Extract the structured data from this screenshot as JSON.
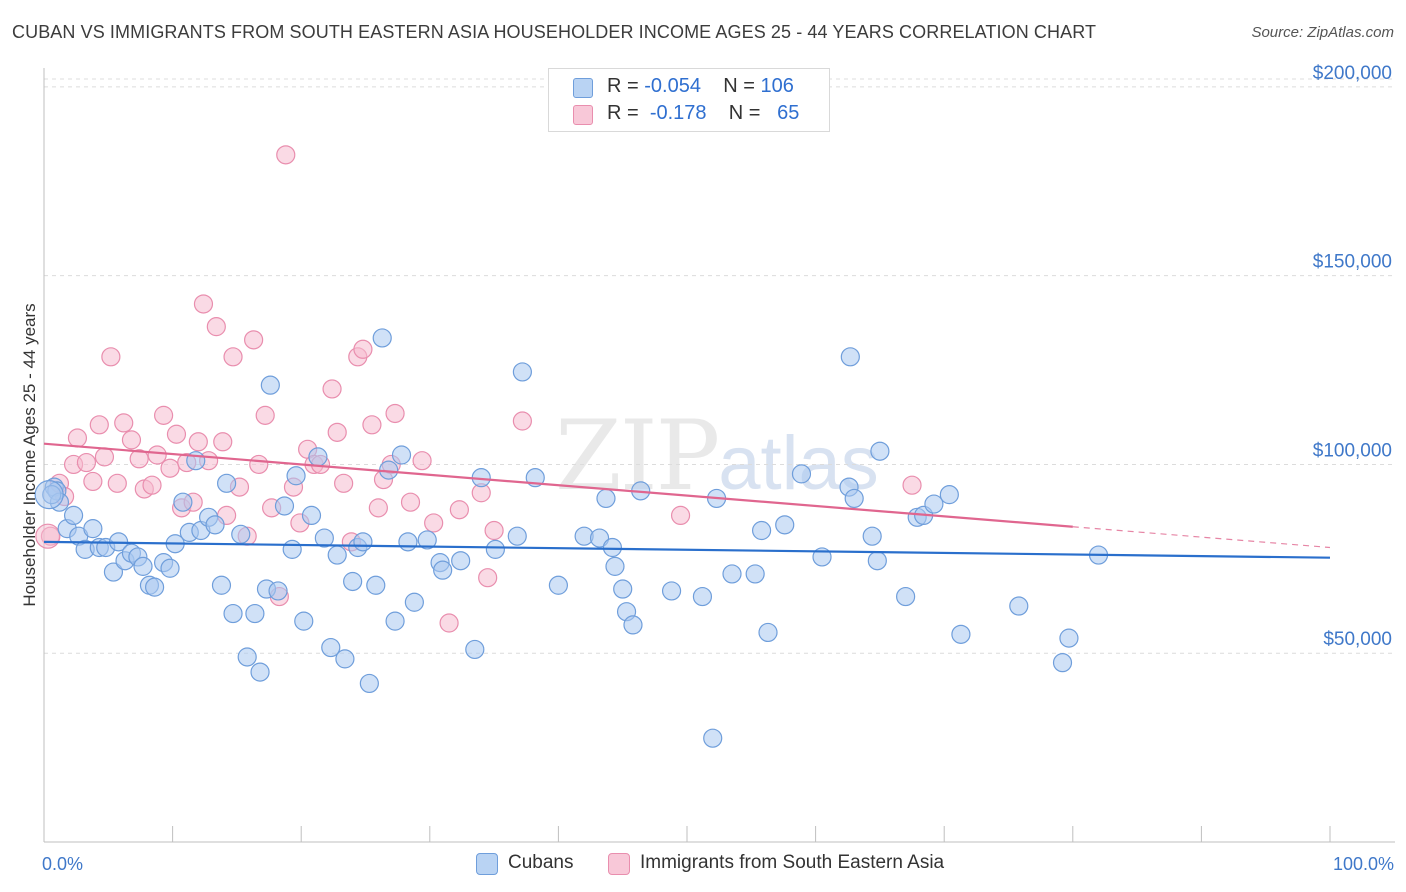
{
  "title": "CUBAN VS IMMIGRANTS FROM SOUTH EASTERN ASIA HOUSEHOLDER INCOME AGES 25 - 44 YEARS CORRELATION CHART",
  "source": "Source: ZipAtlas.com",
  "watermark": {
    "zip": "ZIP",
    "atlas": "atlas"
  },
  "colors": {
    "blue_fill": "#aac8f0",
    "blue_stroke": "#6f9edb",
    "blue_line": "#2a6fcc",
    "pink_fill": "#f5bcd0",
    "pink_stroke": "#e98eae",
    "pink_line": "#e0668f",
    "axis_text": "#3f78c9",
    "grid": "#dcdcdc"
  },
  "legend": {
    "rows": [
      {
        "r_label": "R =",
        "r_value": "-0.054",
        "n_label": "N =",
        "n_value": "106"
      },
      {
        "r_label": "R =",
        "r_value": "-0.178",
        "n_label": "N =",
        "n_value": "65"
      }
    ]
  },
  "bottom_legend": {
    "cubans": "Cubans",
    "immigrants": "Immigrants from South Eastern Asia"
  },
  "chart_data": {
    "type": "scatter",
    "title": "CUBAN VS IMMIGRANTS FROM SOUTH EASTERN ASIA HOUSEHOLDER INCOME AGES 25 - 44 YEARS CORRELATION CHART",
    "xlabel": "",
    "ylabel": "Householder Income Ages 25 - 44 years",
    "xlim": [
      0,
      100
    ],
    "ylim": [
      0,
      205000
    ],
    "x_tick_labels": [
      "0.0%",
      "100.0%"
    ],
    "y_ticks": [
      50000,
      100000,
      150000,
      200000
    ],
    "y_tick_labels": [
      "$50,000",
      "$100,000",
      "$150,000",
      "$200,000"
    ],
    "grid": true,
    "legend_position": "top-center",
    "series": [
      {
        "name": "Cubans",
        "r": -0.054,
        "n": 106,
        "trend": {
          "x": [
            0,
            100
          ],
          "y": [
            79500,
            75300
          ]
        },
        "points": [
          [
            0.8,
            94000
          ],
          [
            1.0,
            93000
          ],
          [
            1.2,
            90000
          ],
          [
            1.8,
            83000
          ],
          [
            2.3,
            86500
          ],
          [
            2.7,
            81000
          ],
          [
            3.2,
            77500
          ],
          [
            3.8,
            83000
          ],
          [
            4.3,
            78000
          ],
          [
            4.8,
            78000
          ],
          [
            5.4,
            71500
          ],
          [
            5.8,
            79500
          ],
          [
            6.3,
            74500
          ],
          [
            6.8,
            76500
          ],
          [
            7.3,
            75500
          ],
          [
            7.7,
            73000
          ],
          [
            8.2,
            68000
          ],
          [
            8.6,
            67500
          ],
          [
            9.3,
            74000
          ],
          [
            9.8,
            72500
          ],
          [
            10.2,
            79000
          ],
          [
            10.8,
            90000
          ],
          [
            11.3,
            82000
          ],
          [
            11.8,
            101000
          ],
          [
            12.2,
            82500
          ],
          [
            12.8,
            86000
          ],
          [
            13.3,
            84000
          ],
          [
            13.8,
            68000
          ],
          [
            14.2,
            95000
          ],
          [
            14.7,
            60500
          ],
          [
            15.3,
            81500
          ],
          [
            15.8,
            49000
          ],
          [
            16.4,
            60500
          ],
          [
            16.8,
            45000
          ],
          [
            17.3,
            67000
          ],
          [
            17.6,
            121000
          ],
          [
            18.2,
            66500
          ],
          [
            18.7,
            89000
          ],
          [
            19.3,
            77500
          ],
          [
            19.6,
            97000
          ],
          [
            20.2,
            58500
          ],
          [
            20.8,
            86500
          ],
          [
            21.3,
            102000
          ],
          [
            21.8,
            80500
          ],
          [
            22.3,
            51500
          ],
          [
            22.8,
            76000
          ],
          [
            23.4,
            48500
          ],
          [
            24.0,
            69000
          ],
          [
            24.4,
            78000
          ],
          [
            24.8,
            79500
          ],
          [
            25.3,
            42000
          ],
          [
            25.8,
            68000
          ],
          [
            26.3,
            133500
          ],
          [
            26.8,
            98500
          ],
          [
            27.3,
            58500
          ],
          [
            27.8,
            102500
          ],
          [
            28.3,
            79500
          ],
          [
            28.8,
            63500
          ],
          [
            29.8,
            80000
          ],
          [
            30.8,
            74000
          ],
          [
            31.0,
            72000
          ],
          [
            32.4,
            74500
          ],
          [
            33.5,
            51000
          ],
          [
            34.0,
            96500
          ],
          [
            35.1,
            77500
          ],
          [
            36.8,
            81000
          ],
          [
            37.2,
            124500
          ],
          [
            38.2,
            96500
          ],
          [
            40.0,
            68000
          ],
          [
            42.0,
            81000
          ],
          [
            43.2,
            80500
          ],
          [
            43.7,
            91000
          ],
          [
            44.2,
            78000
          ],
          [
            44.4,
            73000
          ],
          [
            45.0,
            67000
          ],
          [
            45.3,
            61000
          ],
          [
            45.8,
            57500
          ],
          [
            46.4,
            93000
          ],
          [
            48.8,
            66500
          ],
          [
            51.2,
            65000
          ],
          [
            52.0,
            27500
          ],
          [
            52.3,
            91000
          ],
          [
            53.5,
            71000
          ],
          [
            55.3,
            71000
          ],
          [
            55.8,
            82500
          ],
          [
            56.3,
            55500
          ],
          [
            57.6,
            84000
          ],
          [
            58.9,
            97500
          ],
          [
            60.5,
            75500
          ],
          [
            62.6,
            94000
          ],
          [
            62.7,
            128500
          ],
          [
            63.0,
            91000
          ],
          [
            64.4,
            81000
          ],
          [
            64.8,
            74500
          ],
          [
            65.0,
            103500
          ],
          [
            67.0,
            65000
          ],
          [
            67.9,
            86000
          ],
          [
            68.4,
            86500
          ],
          [
            69.2,
            89500
          ],
          [
            70.4,
            92000
          ],
          [
            71.3,
            55000
          ],
          [
            75.8,
            62500
          ],
          [
            79.2,
            47500
          ],
          [
            79.7,
            54000
          ],
          [
            82.0,
            76000
          ],
          [
            0.6,
            92000
          ]
        ]
      },
      {
        "name": "Immigrants from South Eastern Asia",
        "r": -0.178,
        "n": 65,
        "trend": {
          "x": [
            0,
            80
          ],
          "y": [
            105500,
            83500
          ]
        },
        "trend_dashed": {
          "x": [
            80,
            100
          ],
          "y": [
            83500,
            78000
          ]
        },
        "points": [
          [
            0.5,
            81000
          ],
          [
            1.2,
            95000
          ],
          [
            1.6,
            91500
          ],
          [
            2.3,
            100000
          ],
          [
            2.6,
            107000
          ],
          [
            3.3,
            100500
          ],
          [
            3.8,
            95500
          ],
          [
            4.3,
            110500
          ],
          [
            4.7,
            102000
          ],
          [
            5.2,
            128500
          ],
          [
            5.7,
            95000
          ],
          [
            6.2,
            111000
          ],
          [
            6.8,
            106500
          ],
          [
            7.4,
            101500
          ],
          [
            7.8,
            93500
          ],
          [
            8.4,
            94500
          ],
          [
            8.8,
            102500
          ],
          [
            9.3,
            113000
          ],
          [
            9.8,
            99000
          ],
          [
            10.3,
            108000
          ],
          [
            10.7,
            88500
          ],
          [
            11.1,
            100500
          ],
          [
            11.6,
            90000
          ],
          [
            12.0,
            106000
          ],
          [
            12.4,
            142500
          ],
          [
            12.8,
            101000
          ],
          [
            13.4,
            136500
          ],
          [
            13.9,
            106000
          ],
          [
            14.2,
            86500
          ],
          [
            14.7,
            128500
          ],
          [
            15.2,
            94000
          ],
          [
            15.8,
            81000
          ],
          [
            16.3,
            133000
          ],
          [
            16.7,
            100000
          ],
          [
            17.2,
            113000
          ],
          [
            17.7,
            88500
          ],
          [
            18.3,
            65000
          ],
          [
            18.8,
            182000
          ],
          [
            19.4,
            94000
          ],
          [
            19.9,
            84500
          ],
          [
            20.5,
            104000
          ],
          [
            21.0,
            100000
          ],
          [
            21.5,
            100000
          ],
          [
            22.4,
            120000
          ],
          [
            22.8,
            108500
          ],
          [
            23.3,
            95000
          ],
          [
            23.9,
            79500
          ],
          [
            24.4,
            128500
          ],
          [
            24.8,
            130500
          ],
          [
            25.5,
            110500
          ],
          [
            26.0,
            88500
          ],
          [
            26.4,
            96000
          ],
          [
            27.0,
            100000
          ],
          [
            27.3,
            113500
          ],
          [
            28.5,
            90000
          ],
          [
            29.4,
            101000
          ],
          [
            30.3,
            84500
          ],
          [
            31.5,
            58000
          ],
          [
            32.3,
            88000
          ],
          [
            34.0,
            92500
          ],
          [
            35.0,
            82500
          ],
          [
            34.5,
            70000
          ],
          [
            37.2,
            111500
          ],
          [
            49.5,
            86500
          ],
          [
            67.5,
            94500
          ]
        ]
      }
    ]
  }
}
